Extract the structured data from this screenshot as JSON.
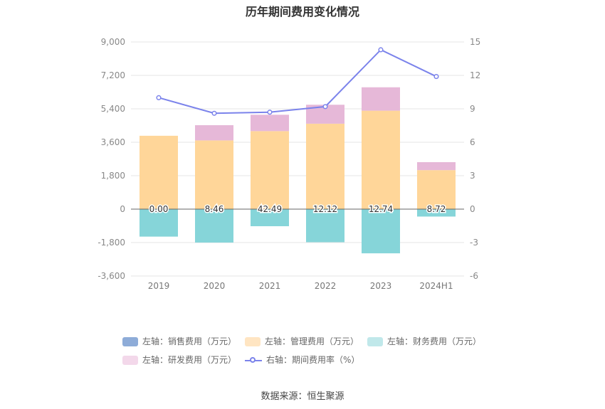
{
  "chart_data": {
    "type": "bar",
    "title": "历年期间费用变化情况",
    "categories": [
      "2019",
      "2020",
      "2021",
      "2022",
      "2023",
      "2024H1"
    ],
    "left_axis": {
      "ylim": [
        -3600,
        9000
      ],
      "ticks": [
        "9,000",
        "7,200",
        "5,400",
        "3,600",
        "1,800",
        "0",
        "-1,800",
        "-3,600"
      ],
      "tick_values": [
        9000,
        7200,
        5400,
        3600,
        1800,
        0,
        -1800,
        -3600
      ]
    },
    "right_axis": {
      "ylim": [
        -6,
        15
      ],
      "ticks": [
        "15",
        "12",
        "9",
        "6",
        "3",
        "0",
        "-3",
        "-6"
      ],
      "tick_values": [
        15,
        12,
        9,
        6,
        3,
        0,
        -3,
        -6
      ]
    },
    "series": [
      {
        "name": "左轴：销售费用（万元）",
        "axis": "left",
        "type": "bar",
        "color": "#8eacd8",
        "values": [
          0,
          0,
          0,
          0,
          0,
          0
        ]
      },
      {
        "name": "左轴：管理费用（万元）",
        "axis": "left",
        "type": "bar",
        "color": "#ffd699",
        "values": [
          3950,
          3700,
          4200,
          4600,
          5300,
          2100
        ]
      },
      {
        "name": "左轴：财务费用（万元）",
        "axis": "left",
        "type": "bar",
        "color": "#86d5d9",
        "values": [
          -1480,
          -1800,
          -920,
          -1780,
          -2380,
          -400
        ]
      },
      {
        "name": "左轴：研发费用（万元）",
        "axis": "left",
        "type": "bar",
        "color": "#e6b8d8",
        "values": [
          0,
          820,
          880,
          1020,
          1260,
          430
        ]
      },
      {
        "name": "右轴：期间费用率（%）",
        "axis": "right",
        "type": "line",
        "color": "#7b83eb",
        "values": [
          10.0,
          8.6,
          8.7,
          9.2,
          14.3,
          11.9
        ]
      }
    ],
    "data_labels": [
      "0.00",
      "8.46",
      "42.49",
      "12.12",
      "12.74",
      "8.72"
    ],
    "legend_position": "bottom",
    "grid": true
  },
  "legend": [
    {
      "label": "左轴：销售费用（万元）",
      "color": "#8eacd8",
      "kind": "swatch"
    },
    {
      "label": "左轴：管理费用（万元）",
      "color": "#ffe5c2",
      "kind": "swatch"
    },
    {
      "label": "左轴：财务费用（万元）",
      "color": "#c0e8ea",
      "kind": "swatch"
    },
    {
      "label": "左轴：研发费用（万元）",
      "color": "#f3d8ea",
      "kind": "swatch"
    },
    {
      "label": "右轴：期间费用率（%）",
      "color": "#7b83eb",
      "kind": "line"
    }
  ],
  "source": "数据来源：恒生聚源"
}
